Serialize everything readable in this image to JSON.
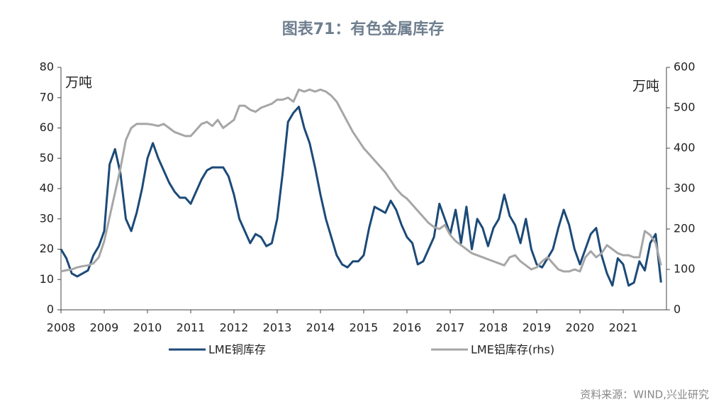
{
  "chart_data": {
    "type": "line",
    "title": "图表71：有色金属库存",
    "y_unit": "万吨",
    "y2_unit": "万吨",
    "source": "资料来源：WIND,兴业研究",
    "x": [
      2008,
      2008.125,
      2008.25,
      2008.375,
      2008.5,
      2008.625,
      2008.75,
      2008.875,
      2009,
      2009.125,
      2009.25,
      2009.375,
      2009.5,
      2009.625,
      2009.75,
      2009.875,
      2010,
      2010.125,
      2010.25,
      2010.375,
      2010.5,
      2010.625,
      2010.75,
      2010.875,
      2011,
      2011.125,
      2011.25,
      2011.375,
      2011.5,
      2011.625,
      2011.75,
      2011.875,
      2012,
      2012.125,
      2012.25,
      2012.375,
      2012.5,
      2012.625,
      2012.75,
      2012.875,
      2013,
      2013.125,
      2013.25,
      2013.375,
      2013.5,
      2013.625,
      2013.75,
      2013.875,
      2014,
      2014.125,
      2014.25,
      2014.375,
      2014.5,
      2014.625,
      2014.75,
      2014.875,
      2015,
      2015.125,
      2015.25,
      2015.375,
      2015.5,
      2015.625,
      2015.75,
      2015.875,
      2016,
      2016.125,
      2016.25,
      2016.375,
      2016.5,
      2016.625,
      2016.75,
      2016.875,
      2017,
      2017.125,
      2017.25,
      2017.375,
      2017.5,
      2017.625,
      2017.75,
      2017.875,
      2018,
      2018.125,
      2018.25,
      2018.375,
      2018.5,
      2018.625,
      2018.75,
      2018.875,
      2019,
      2019.125,
      2019.25,
      2019.375,
      2019.5,
      2019.625,
      2019.75,
      2019.875,
      2020,
      2020.125,
      2020.25,
      2020.375,
      2020.5,
      2020.625,
      2020.75,
      2020.875,
      2021,
      2021.125,
      2021.25,
      2021.375,
      2021.5,
      2021.625,
      2021.75,
      2021.875
    ],
    "series": [
      {
        "name": "LME铜库存",
        "color": "#1c4a78",
        "values": [
          20,
          17,
          12,
          11,
          12,
          13,
          18,
          21,
          26,
          48,
          53,
          45,
          30,
          26,
          32,
          40,
          50,
          55,
          50,
          46,
          42,
          39,
          37,
          37,
          35,
          39,
          43,
          46,
          47,
          47,
          47,
          44,
          38,
          30,
          26,
          22,
          25,
          24,
          21,
          22,
          30,
          45,
          62,
          65,
          67,
          60,
          55,
          47,
          38,
          30,
          24,
          18,
          15,
          14,
          16,
          16,
          18,
          27,
          34,
          33,
          32,
          36,
          33,
          28,
          24,
          22,
          15,
          16,
          20,
          24,
          35,
          30,
          25,
          33,
          22,
          34,
          20,
          30,
          27,
          21,
          27,
          30,
          38,
          31,
          28,
          22,
          30,
          20,
          15,
          14,
          17,
          20,
          27,
          33,
          28,
          20,
          15,
          20,
          25,
          27,
          18,
          12,
          8,
          17,
          15,
          8,
          9,
          16,
          13,
          22,
          25,
          9
        ]
      },
      {
        "name": "LME铝库存(rhs)",
        "color": "#a6a6a6",
        "axis": "y2",
        "values": [
          95,
          98,
          100,
          105,
          108,
          110,
          115,
          130,
          170,
          230,
          290,
          350,
          420,
          450,
          460,
          460,
          460,
          458,
          455,
          460,
          450,
          440,
          435,
          430,
          430,
          445,
          460,
          465,
          455,
          470,
          450,
          460,
          470,
          505,
          505,
          495,
          490,
          500,
          505,
          510,
          520,
          520,
          525,
          515,
          545,
          540,
          545,
          540,
          545,
          540,
          530,
          515,
          490,
          465,
          440,
          420,
          400,
          385,
          370,
          355,
          340,
          320,
          300,
          285,
          275,
          260,
          245,
          230,
          215,
          205,
          200,
          210,
          185,
          170,
          160,
          150,
          140,
          135,
          130,
          125,
          120,
          115,
          110,
          130,
          135,
          120,
          110,
          100,
          105,
          120,
          130,
          115,
          100,
          95,
          95,
          100,
          95,
          130,
          145,
          130,
          140,
          160,
          150,
          140,
          135,
          135,
          130,
          130,
          195,
          185,
          165,
          110
        ]
      }
    ],
    "xlim": [
      2008,
      2022
    ],
    "xticks": [
      2008,
      2009,
      2010,
      2011,
      2012,
      2013,
      2014,
      2015,
      2016,
      2017,
      2018,
      2019,
      2020,
      2021
    ],
    "ylim": [
      0,
      80
    ],
    "yticks": [
      0,
      10,
      20,
      30,
      40,
      50,
      60,
      70,
      80
    ],
    "y2lim": [
      0,
      600
    ],
    "y2ticks": [
      0,
      100,
      200,
      300,
      400,
      500,
      600
    ],
    "grid": false
  }
}
